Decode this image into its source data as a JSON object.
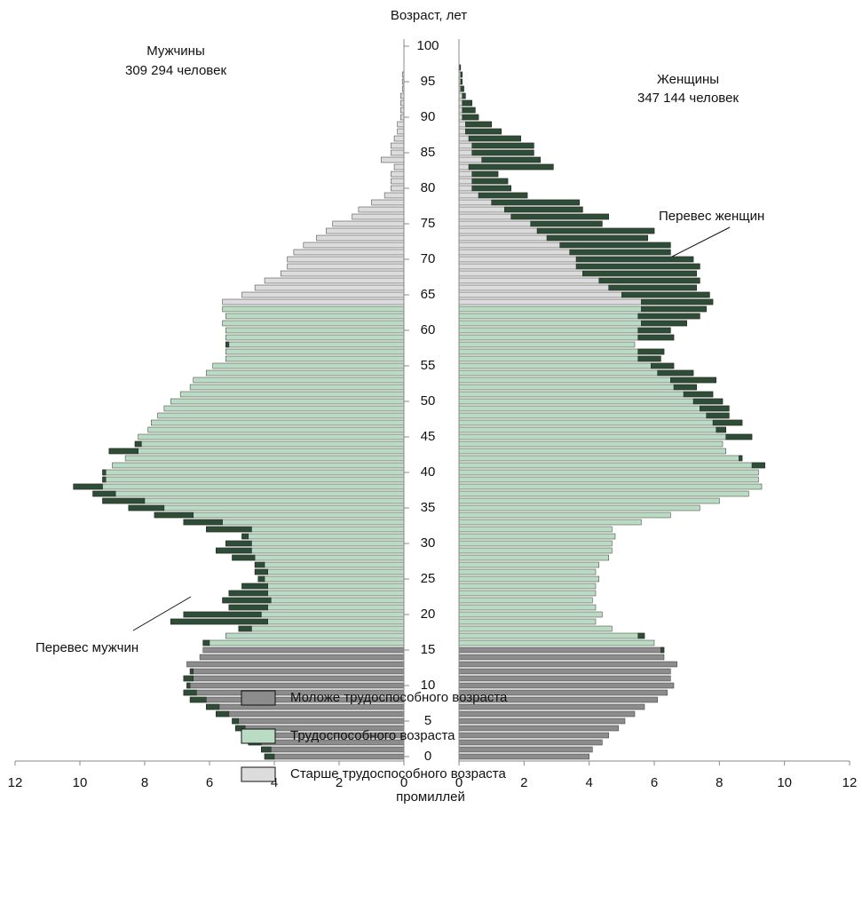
{
  "chart_data": {
    "type": "pyramid",
    "title": "Возраст, лет",
    "x_label": "промиллей",
    "left_title": "Мужчины",
    "left_subtitle": "309 294 человек",
    "right_title": "Женщины",
    "right_subtitle": "347 144 человек",
    "annotations": [
      "Перевес мужчин",
      "Перевес женщин"
    ],
    "excess_color": "#2e4d35",
    "ylim": [
      0,
      100
    ],
    "yticks": [
      0,
      5,
      10,
      15,
      20,
      25,
      30,
      35,
      40,
      45,
      50,
      55,
      60,
      65,
      70,
      75,
      80,
      85,
      90,
      95,
      100
    ],
    "xlim": [
      0,
      12
    ],
    "xticks": [
      0,
      2,
      4,
      6,
      8,
      10,
      12
    ],
    "series": [
      {
        "name": "Моложе трудоспособного возраста",
        "color": "#8c8c8c",
        "male": [
          4.3,
          4.4,
          4.8,
          5.0,
          5.2,
          5.3,
          5.8,
          6.1,
          6.6,
          6.8,
          6.7,
          6.8,
          6.6,
          6.7,
          6.3,
          6.2,
          null,
          null,
          null,
          null,
          null,
          null,
          null,
          null,
          null,
          null,
          null,
          null,
          null,
          null,
          null,
          null,
          null,
          null,
          null,
          null,
          null,
          null,
          null,
          null,
          null,
          null,
          null,
          null,
          null,
          null,
          null,
          null,
          null,
          null,
          null,
          null,
          null,
          null,
          null,
          null,
          null,
          null,
          null,
          null,
          null,
          null,
          null,
          null,
          null,
          null,
          null,
          null,
          null,
          null,
          null,
          null,
          null,
          null,
          null,
          null,
          null,
          null,
          null,
          null,
          null,
          null,
          null,
          null,
          null,
          null,
          null,
          null,
          null,
          null,
          null,
          null,
          null,
          null,
          null,
          null,
          null,
          null,
          null,
          null,
          null
        ],
        "female": [
          4.0,
          4.1,
          4.4,
          4.6,
          4.9,
          5.1,
          5.4,
          5.7,
          6.1,
          6.4,
          6.6,
          6.5,
          6.5,
          6.7,
          6.3,
          6.3,
          null,
          null,
          null,
          null,
          null,
          null,
          null,
          null,
          null,
          null,
          null,
          null,
          null,
          null,
          null,
          null,
          null,
          null,
          null,
          null,
          null,
          null,
          null,
          null,
          null,
          null,
          null,
          null,
          null,
          null,
          null,
          null,
          null,
          null,
          null,
          null,
          null,
          null,
          null,
          null,
          null,
          null,
          null,
          null,
          null,
          null,
          null,
          null,
          null,
          null,
          null,
          null,
          null,
          null,
          null,
          null,
          null,
          null,
          null,
          null,
          null,
          null,
          null,
          null,
          null,
          null,
          null,
          null,
          null,
          null,
          null,
          null,
          null,
          null,
          null,
          null,
          null,
          null,
          null,
          null,
          null,
          null,
          null,
          null,
          null
        ]
      },
      {
        "name": "Трудоспособного возраста",
        "color": "#b9dcc2",
        "male": [
          null,
          null,
          null,
          null,
          null,
          null,
          null,
          null,
          null,
          null,
          null,
          null,
          null,
          null,
          null,
          null,
          6.2,
          5.5,
          5.1,
          7.2,
          6.8,
          5.4,
          5.6,
          5.4,
          5.0,
          4.5,
          4.6,
          4.6,
          5.3,
          5.8,
          5.5,
          5.0,
          6.1,
          6.8,
          7.7,
          8.5,
          9.3,
          9.6,
          10.2,
          9.3,
          9.3,
          9.0,
          8.6,
          9.1,
          8.3,
          8.2,
          7.9,
          7.8,
          7.6,
          7.4,
          7.2,
          6.9,
          6.6,
          6.5,
          6.1,
          5.9,
          5.5,
          5.5,
          5.5,
          5.5,
          5.5,
          5.6,
          5.5,
          5.6,
          null,
          null,
          null,
          null,
          null,
          null,
          null,
          null,
          null,
          null,
          null,
          null,
          null,
          null,
          null,
          null,
          null,
          null,
          null,
          null,
          null,
          null,
          null,
          null,
          null,
          null,
          null,
          null,
          null,
          null,
          null,
          null,
          null,
          null,
          null,
          null,
          null
        ],
        "female": [
          null,
          null,
          null,
          null,
          null,
          null,
          null,
          null,
          null,
          null,
          null,
          null,
          null,
          null,
          null,
          null,
          6.0,
          5.7,
          4.7,
          4.2,
          4.4,
          4.2,
          4.1,
          4.2,
          4.2,
          4.3,
          4.2,
          4.3,
          4.6,
          4.7,
          4.7,
          4.8,
          4.7,
          5.6,
          6.5,
          7.4,
          8.0,
          8.9,
          9.3,
          9.2,
          9.2,
          9.4,
          8.7,
          8.2,
          8.1,
          9.0,
          8.2,
          8.7,
          8.3,
          8.3,
          8.1,
          7.8,
          7.3,
          7.9,
          7.2,
          6.6,
          6.2,
          null,
          null,
          null,
          null,
          null,
          null,
          null,
          null,
          null,
          null,
          null,
          null,
          null,
          null,
          null,
          null,
          null,
          null,
          null,
          null,
          null,
          null,
          null,
          null,
          null,
          null,
          null,
          null,
          null,
          null,
          null,
          null,
          null,
          null,
          null,
          null,
          null,
          null,
          null,
          null,
          null,
          null,
          null
        ]
      },
      {
        "name": "Старше трудоспособного возраста",
        "color": "#dcdcdc",
        "male": [
          null,
          null,
          null,
          null,
          null,
          null,
          null,
          null,
          null,
          null,
          null,
          null,
          null,
          null,
          null,
          null,
          null,
          null,
          null,
          null,
          null,
          null,
          null,
          null,
          null,
          null,
          null,
          null,
          null,
          null,
          null,
          null,
          null,
          null,
          null,
          null,
          null,
          null,
          null,
          null,
          null,
          null,
          null,
          null,
          null,
          null,
          null,
          null,
          null,
          null,
          null,
          null,
          null,
          null,
          null,
          null,
          null,
          null,
          null,
          null,
          null,
          null,
          null,
          null,
          5.6,
          5.0,
          4.6,
          4.3,
          3.8,
          3.6,
          3.6,
          3.4,
          3.1,
          2.7,
          2.4,
          2.2,
          1.6,
          1.4,
          1.0,
          0.6,
          0.4,
          0.4,
          0.4,
          0.3,
          0.7,
          0.4,
          0.4,
          0.3,
          0.2,
          0.2,
          0.1,
          0.1,
          0.1,
          0.1,
          0.05,
          0.05,
          0.05,
          0,
          0,
          0,
          0
        ],
        "female": [
          null,
          null,
          null,
          null,
          null,
          null,
          null,
          null,
          null,
          null,
          null,
          null,
          null,
          null,
          null,
          null,
          null,
          null,
          null,
          null,
          null,
          null,
          null,
          null,
          null,
          null,
          null,
          null,
          null,
          null,
          null,
          null,
          null,
          null,
          null,
          null,
          null,
          null,
          null,
          null,
          null,
          null,
          null,
          null,
          null,
          null,
          null,
          null,
          null,
          null,
          null,
          null,
          null,
          null,
          null,
          null,
          null,
          6.3,
          5.4,
          6.6,
          6.5,
          7.0,
          7.4,
          7.6,
          7.8,
          7.7,
          7.3,
          7.4,
          7.3,
          7.4,
          7.2,
          6.5,
          6.5,
          5.8,
          6.0,
          4.4,
          4.6,
          3.8,
          3.7,
          2.1,
          1.6,
          1.5,
          1.2,
          2.9,
          2.5,
          2.3,
          2.3,
          1.9,
          1.3,
          1.0,
          0.6,
          0.5,
          0.4,
          0.2,
          0.15,
          0.1,
          0.1,
          0.05,
          0,
          0,
          0
        ]
      }
    ]
  }
}
